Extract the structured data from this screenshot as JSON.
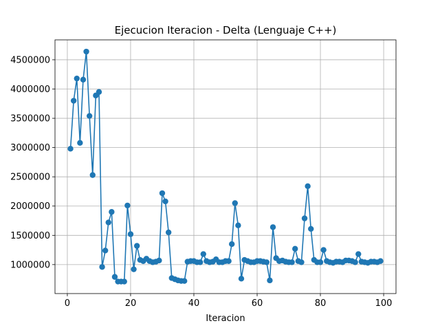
{
  "chart_data": {
    "type": "line",
    "title": "Ejecucion Iteracion - Delta  (Lenguaje C++)",
    "xlabel": "Iteracion",
    "ylabel": "",
    "xlim": [
      -3.9,
      103.9
    ],
    "ylim": [
      505000,
      4840000
    ],
    "xticks": [
      0,
      20,
      40,
      60,
      80,
      100
    ],
    "xtick_labels": [
      "0",
      "20",
      "40",
      "60",
      "80",
      "100"
    ],
    "yticks": [
      1000000,
      1500000,
      2000000,
      2500000,
      3000000,
      3500000,
      4000000,
      4500000
    ],
    "ytick_labels": [
      "1000000",
      "1500000",
      "2000000",
      "2500000",
      "3000000",
      "3500000",
      "4000000",
      "4500000"
    ],
    "grid": true,
    "markers": true,
    "color": "#1f77b4",
    "series": [
      {
        "x": [
          1,
          2,
          3,
          4,
          5,
          6,
          7,
          8,
          9,
          10,
          11,
          12,
          13,
          14,
          15,
          16,
          17,
          18,
          19,
          20,
          21,
          22,
          23,
          24,
          25,
          26,
          27,
          28,
          29,
          30,
          31,
          32,
          33,
          34,
          35,
          36,
          37,
          38,
          39,
          40,
          41,
          42,
          43,
          44,
          45,
          46,
          47,
          48,
          49,
          50,
          51,
          52,
          53,
          54,
          55,
          56,
          57,
          58,
          59,
          60,
          61,
          62,
          63,
          64,
          65,
          66,
          67,
          68,
          69,
          70,
          71,
          72,
          73,
          74,
          75,
          76,
          77,
          78,
          79,
          80,
          81,
          82,
          83,
          84,
          85,
          86,
          87,
          88,
          89,
          90,
          91,
          92,
          93,
          94,
          95,
          96,
          97,
          98,
          99
        ],
        "values": [
          2980000,
          3800000,
          4180000,
          3080000,
          4160000,
          4640000,
          3540000,
          2530000,
          3890000,
          3950000,
          960000,
          1240000,
          1720000,
          1900000,
          790000,
          710000,
          710000,
          710000,
          2010000,
          1520000,
          920000,
          1320000,
          1080000,
          1060000,
          1100000,
          1060000,
          1040000,
          1050000,
          1070000,
          2220000,
          2080000,
          1550000,
          770000,
          750000,
          730000,
          720000,
          720000,
          1050000,
          1060000,
          1060000,
          1040000,
          1040000,
          1180000,
          1060000,
          1040000,
          1050000,
          1090000,
          1040000,
          1040000,
          1060000,
          1060000,
          1350000,
          2050000,
          1670000,
          760000,
          1080000,
          1060000,
          1040000,
          1040000,
          1060000,
          1060000,
          1050000,
          1040000,
          730000,
          1640000,
          1110000,
          1060000,
          1070000,
          1050000,
          1040000,
          1040000,
          1270000,
          1060000,
          1040000,
          1790000,
          2340000,
          1610000,
          1080000,
          1040000,
          1040000,
          1250000,
          1060000,
          1040000,
          1030000,
          1050000,
          1050000,
          1040000,
          1070000,
          1070000,
          1060000,
          1040000,
          1180000,
          1050000,
          1040000,
          1030000,
          1050000,
          1050000,
          1040000,
          1060000
        ]
      }
    ]
  }
}
